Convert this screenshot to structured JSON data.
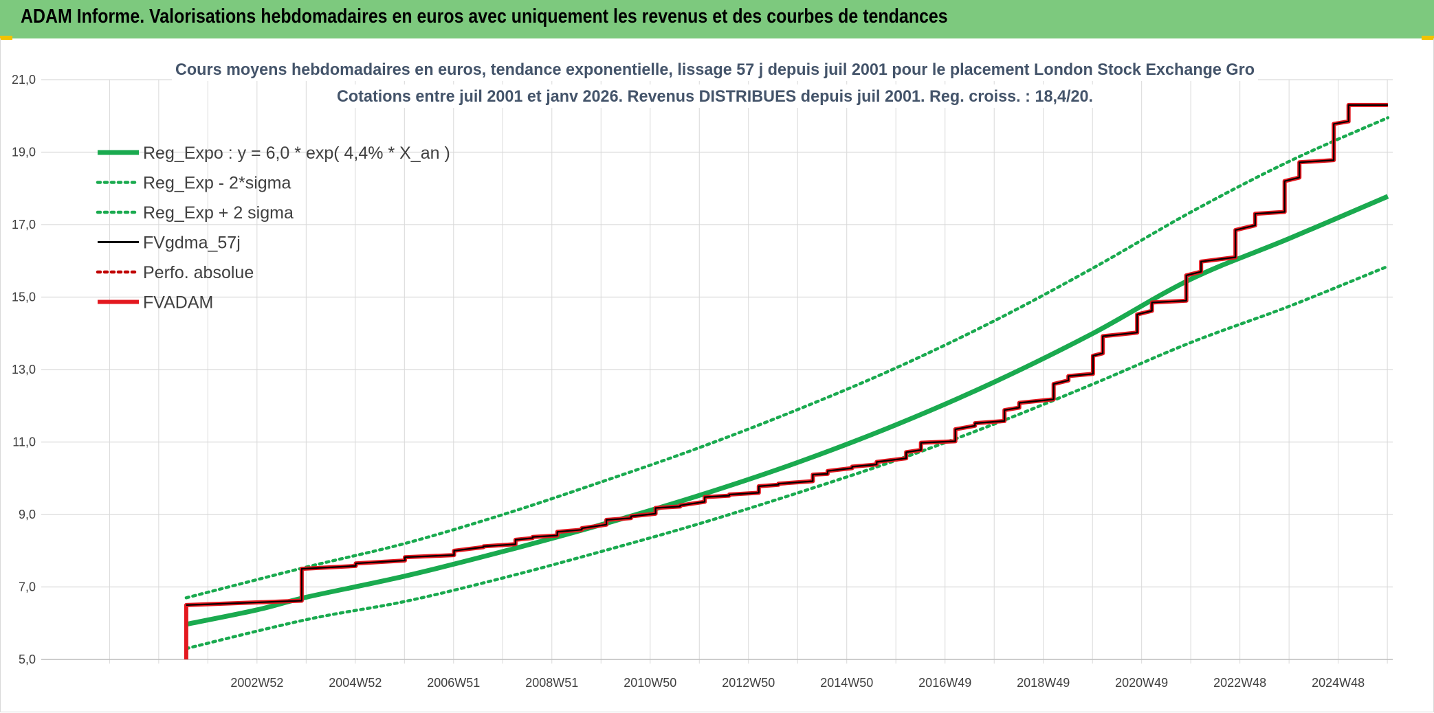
{
  "banner": {
    "title": "ADAM Informe. Valorisations hebdomadaires en euros avec uniquement les revenus et des courbes de tendances"
  },
  "colors": {
    "banner_bg": "#7dc97e",
    "reg_green": "#1aaa4f",
    "fvgdma": "#000000",
    "fvadam": "#e3181f",
    "perfo": "#c00000",
    "title_text": "#44546a",
    "grid": "#d9d9d9"
  },
  "chart_data": {
    "type": "line",
    "title_line1": "Cours moyens hebdomadaires en euros, tendance exponentielle, lissage 57 j depuis juil 2001 pour le placement London Stock Exchange Gro",
    "title_line2": "Cotations entre juil 2001 et janv 2026. Revenus DISTRIBUES depuis juil 2001. Reg. croiss. : 18,4/20.",
    "ylim": [
      5.0,
      21.0
    ],
    "xlim": [
      1998.6,
      2026.1
    ],
    "y_ticks": [
      "5,0",
      "7,0",
      "9,0",
      "11,0",
      "13,0",
      "15,0",
      "17,0",
      "19,0",
      "21,0"
    ],
    "x_tick_labels": [
      "2002W52",
      "2004W52",
      "2006W51",
      "2008W51",
      "2010W50",
      "2012W50",
      "2014W50",
      "2016W49",
      "2018W49",
      "2020W49",
      "2022W48",
      "2024W48"
    ],
    "x_tick_positions": [
      2002.99,
      2004.99,
      2006.99,
      2008.99,
      2010.99,
      2012.99,
      2014.99,
      2016.99,
      2018.99,
      2020.99,
      2022.99,
      2024.99
    ],
    "grid": true,
    "legend_position": "top-left",
    "series": [
      {
        "name": "Reg_Expo : y = 6,0 * exp( 4,4% *  X_an )",
        "style": "solid-thick",
        "color": "#1aaa4f",
        "x": [
          2001.55,
          2003.0,
          2004.0,
          2006.0,
          2008.0,
          2010.0,
          2012.0,
          2014.0,
          2016.0,
          2018.0,
          2020.0,
          2022.0,
          2024.0,
          2026.0
        ],
        "y": [
          5.97,
          6.37,
          6.72,
          7.3,
          7.98,
          8.72,
          9.53,
          10.44,
          11.48,
          12.66,
          14.0,
          15.5,
          16.62,
          17.78
        ]
      },
      {
        "name": "Reg_Exp - 2*sigma",
        "style": "dotted",
        "color": "#1aaa4f",
        "x": [
          2001.55,
          2004.0,
          2006.0,
          2008.0,
          2010.0,
          2012.0,
          2014.0,
          2016.0,
          2018.0,
          2020.0,
          2022.0,
          2024.0,
          2026.0
        ],
        "y": [
          5.3,
          6.1,
          6.6,
          7.25,
          7.98,
          8.75,
          9.6,
          10.5,
          11.5,
          12.6,
          13.75,
          14.75,
          15.85
        ]
      },
      {
        "name": "Reg_Exp + 2 sigma",
        "style": "dotted",
        "color": "#1aaa4f",
        "x": [
          2001.55,
          2004.0,
          2006.0,
          2008.0,
          2010.0,
          2012.0,
          2014.0,
          2016.0,
          2018.0,
          2020.0,
          2022.0,
          2024.0,
          2026.0
        ],
        "y": [
          6.7,
          7.55,
          8.2,
          9.0,
          9.9,
          10.85,
          11.9,
          13.05,
          14.35,
          15.8,
          17.35,
          18.75,
          19.95
        ]
      },
      {
        "name": "FVgdma_57j",
        "style": "solid",
        "color": "#000000",
        "x": [
          2001.55,
          2003.9,
          2004.1,
          2026.0
        ],
        "y": [
          6.5,
          6.62,
          7.5,
          20.3
        ]
      },
      {
        "name": "Perfo. absolue",
        "style": "dotted",
        "color": "#c00000",
        "x": [],
        "y": []
      },
      {
        "name": "FVADAM",
        "style": "step-thick",
        "color": "#e3181f",
        "x": [
          2001.55,
          2001.55,
          2003.9,
          2003.9,
          2005.0,
          2005.0,
          2006.0,
          2006.0,
          2007.0,
          2007.0,
          2007.6,
          2007.6,
          2008.25,
          2008.25,
          2008.6,
          2008.6,
          2009.1,
          2009.1,
          2009.6,
          2009.6,
          2010.1,
          2010.1,
          2010.6,
          2010.6,
          2011.1,
          2011.1,
          2011.6,
          2011.6,
          2012.1,
          2012.1,
          2012.6,
          2012.6,
          2013.2,
          2013.2,
          2013.6,
          2013.6,
          2014.3,
          2014.3,
          2014.6,
          2014.6,
          2015.1,
          2015.1,
          2015.6,
          2015.6,
          2016.2,
          2016.2,
          2016.5,
          2016.5,
          2017.2,
          2017.2,
          2017.6,
          2017.6,
          2018.2,
          2018.2,
          2018.5,
          2018.5,
          2019.2,
          2019.2,
          2019.5,
          2019.5,
          2020.0,
          2020.0,
          2020.2,
          2020.2,
          2020.9,
          2020.9,
          2021.2,
          2021.2,
          2021.9,
          2021.9,
          2022.2,
          2022.2,
          2022.9,
          2022.9,
          2023.3,
          2023.3,
          2023.9,
          2023.9,
          2024.2,
          2024.2,
          2024.9,
          2024.9,
          2025.2,
          2025.2,
          2026.0
        ],
        "y": [
          5.0,
          6.5,
          6.62,
          7.5,
          7.58,
          7.65,
          7.73,
          7.82,
          7.88,
          8.0,
          8.1,
          8.12,
          8.18,
          8.3,
          8.35,
          8.38,
          8.42,
          8.52,
          8.58,
          8.62,
          8.72,
          8.85,
          8.9,
          8.95,
          9.02,
          9.18,
          9.22,
          9.25,
          9.35,
          9.48,
          9.52,
          9.55,
          9.6,
          9.78,
          9.82,
          9.85,
          9.92,
          10.1,
          10.12,
          10.2,
          10.28,
          10.32,
          10.38,
          10.45,
          10.55,
          10.72,
          10.78,
          10.98,
          11.02,
          11.35,
          11.45,
          11.52,
          11.58,
          11.88,
          11.95,
          12.08,
          12.18,
          12.6,
          12.7,
          12.82,
          12.88,
          13.38,
          13.45,
          13.92,
          14.02,
          14.52,
          14.62,
          14.85,
          14.9,
          15.6,
          15.7,
          15.98,
          16.1,
          16.85,
          16.98,
          17.3,
          17.35,
          18.2,
          18.3,
          18.72,
          18.78,
          19.78,
          19.85,
          20.3,
          20.3
        ]
      }
    ]
  }
}
